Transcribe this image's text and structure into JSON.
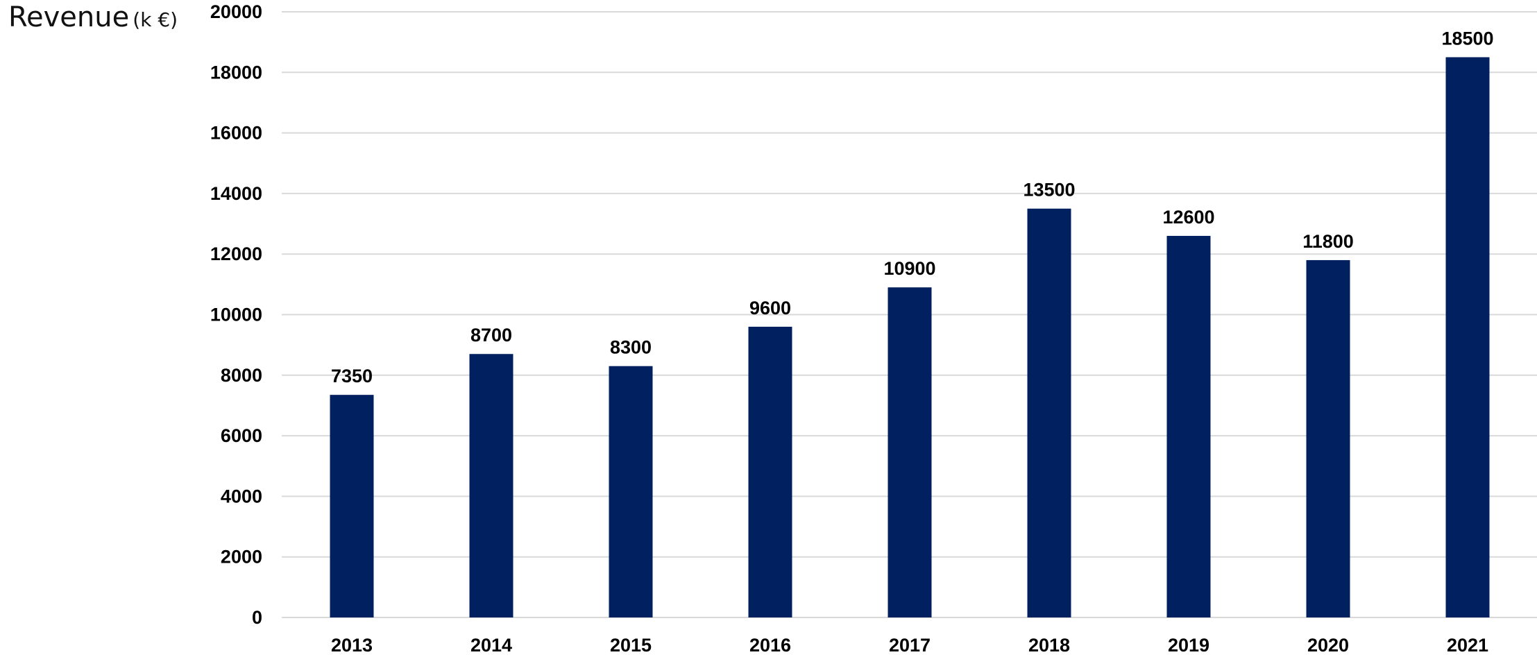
{
  "chart_data": {
    "type": "bar",
    "title": "Revenue",
    "title_unit": "(k €)",
    "xlabel": "",
    "ylabel": "",
    "categories": [
      "2013",
      "2014",
      "2015",
      "2016",
      "2017",
      "2018",
      "2019",
      "2020",
      "2021"
    ],
    "series": [
      {
        "values": [
          7350,
          8700,
          8300,
          9600,
          10900,
          13500,
          12600,
          11800,
          18500
        ]
      }
    ],
    "ylim": [
      0,
      20000
    ],
    "yticks": [
      "0",
      "2000",
      "4000",
      "6000",
      "8000",
      "10000",
      "12000",
      "14000",
      "16000",
      "18000",
      "20000"
    ],
    "data_labels": [
      "7350",
      "8700",
      "8300",
      "9600",
      "10900",
      "13500",
      "12600",
      "11800",
      "18500"
    ],
    "grid": true,
    "legend": "none",
    "colors": {
      "bar": "#002060",
      "grid": "#d9d9d9",
      "text": "#000000"
    }
  }
}
